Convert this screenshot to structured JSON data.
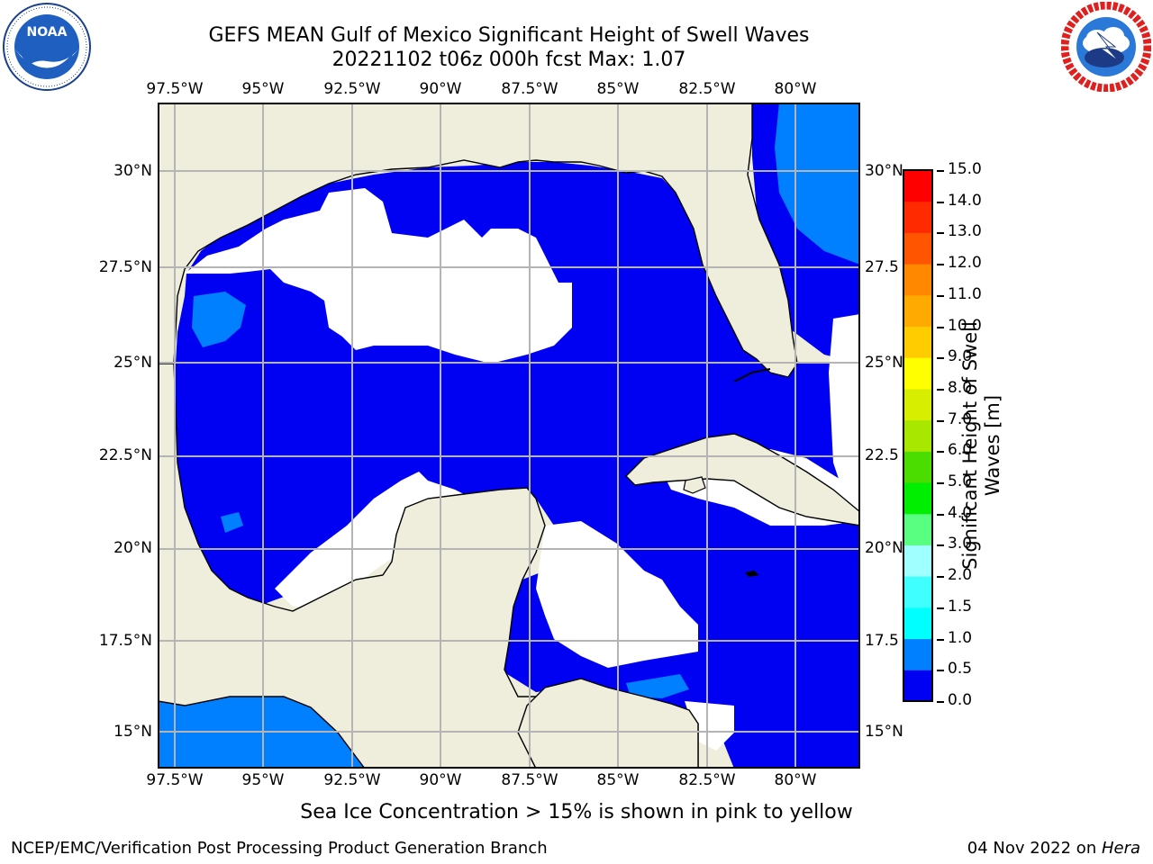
{
  "title": {
    "line1": "GEFS MEAN Gulf of Mexico Significant Height of Swell Waves",
    "line2": "20221102 t06z 000h fcst   Max: 1.07"
  },
  "logos": {
    "left": "NOAA",
    "left_ring": "NATIONAL OCEANIC AND ATMOSPHERIC ADMINISTRATION",
    "right_ring": "NATIONAL WEATHER SERVICE"
  },
  "axes": {
    "lon_labels": [
      "97.5°W",
      "95°W",
      "92.5°W",
      "90°W",
      "87.5°W",
      "85°W",
      "82.5°W",
      "80°W"
    ],
    "lat_labels": [
      "30°N",
      "27.5°N",
      "25°N",
      "22.5°N",
      "20°N",
      "17.5°N",
      "15°N"
    ],
    "lat_labels_right": [
      "30°N",
      "27.5",
      "25°N",
      "22.5",
      "20°N",
      "17.5",
      "15°N"
    ]
  },
  "colorbar": {
    "label_line1": "Significant Height of Swell",
    "label_line2": "Waves [m]",
    "ticks": [
      "0.0",
      "0.5",
      "1.0",
      "1.5",
      "2.0",
      "3.0",
      "4.0",
      "5.0",
      "6.0",
      "7.0",
      "8.0",
      "9.0",
      "10.0",
      "11.0",
      "12.0",
      "13.0",
      "14.0",
      "15.0"
    ],
    "colors": [
      "#0000f2",
      "#0080ff",
      "#00c8ff",
      "#00ffff",
      "#40ffff",
      "#80ffff",
      "#a8ffff",
      "#58ff80",
      "#00e000",
      "#30f000",
      "#80f000",
      "#c0f000",
      "#e8f000",
      "#ffff00",
      "#ffe000",
      "#ffc000",
      "#ffa000",
      "#ff8000",
      "#ff6000",
      "#ff4000",
      "#ff2000",
      "#ff0000"
    ]
  },
  "map": {
    "land_color": "#efeedd",
    "ocean_low_color": "#0000f2",
    "ocean_mid_color": "#0080ff",
    "no_data_color": "#ffffff",
    "grid_color": "#b4b4b4"
  },
  "caption": "Sea Ice Concentration > 15% is shown in pink to yellow",
  "footer": {
    "left": "NCEP/EMC/Verification Post Processing Product Generation Branch",
    "date": "04 Nov 2022 on ",
    "host": "Hera"
  }
}
